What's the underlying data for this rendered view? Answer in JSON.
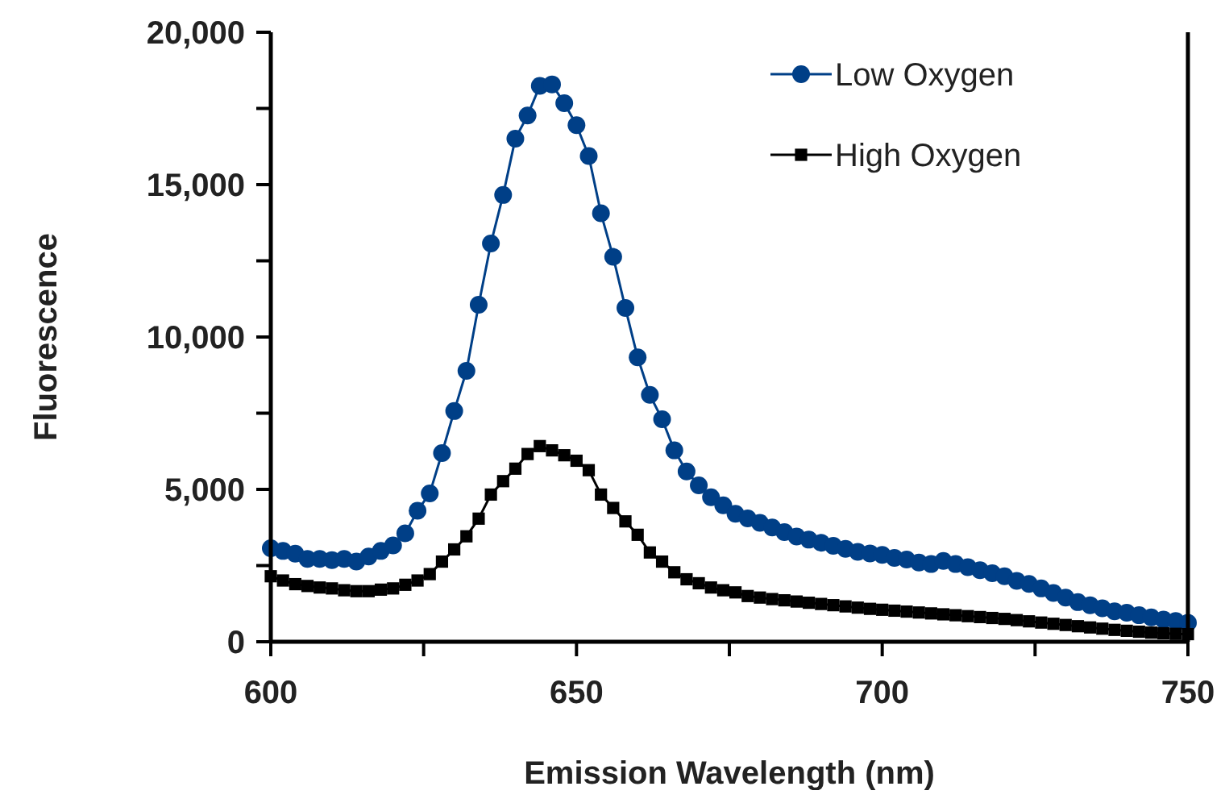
{
  "chart_data": {
    "type": "line",
    "xlabel": "Emission Wavelength (nm)",
    "ylabel": "Fluorescence",
    "x": [
      600,
      602,
      604,
      606,
      608,
      610,
      612,
      614,
      616,
      618,
      620,
      622,
      624,
      626,
      628,
      630,
      632,
      634,
      636,
      638,
      640,
      642,
      644,
      646,
      648,
      650,
      652,
      654,
      656,
      658,
      660,
      662,
      664,
      666,
      668,
      670,
      672,
      674,
      676,
      678,
      680,
      682,
      684,
      686,
      688,
      690,
      692,
      694,
      696,
      698,
      700,
      702,
      704,
      706,
      708,
      710,
      712,
      714,
      716,
      718,
      720,
      722,
      724,
      726,
      728,
      730,
      732,
      734,
      736,
      738,
      740,
      742,
      744,
      746,
      748,
      750
    ],
    "series": [
      {
        "name": "Low Oxygen",
        "color": "#003f87",
        "marker": "circle",
        "values": [
          3070,
          2980,
          2890,
          2720,
          2720,
          2680,
          2720,
          2630,
          2800,
          2980,
          3160,
          3560,
          4300,
          4870,
          6190,
          7570,
          8890,
          11060,
          13070,
          14660,
          16510,
          17270,
          18240,
          18290,
          17670,
          16950,
          15940,
          14060,
          12630,
          10950,
          9330,
          8100,
          7300,
          6280,
          5590,
          5130,
          4740,
          4480,
          4200,
          4050,
          3900,
          3750,
          3600,
          3450,
          3350,
          3250,
          3150,
          3050,
          2950,
          2900,
          2850,
          2750,
          2700,
          2600,
          2550,
          2650,
          2550,
          2450,
          2350,
          2250,
          2150,
          2000,
          1900,
          1750,
          1600,
          1450,
          1300,
          1200,
          1100,
          1000,
          950,
          870,
          800,
          730,
          680,
          620
        ]
      },
      {
        "name": "High Oxygen",
        "color": "#000000",
        "marker": "square",
        "values": [
          2150,
          2010,
          1890,
          1830,
          1780,
          1750,
          1690,
          1660,
          1660,
          1710,
          1750,
          1870,
          2010,
          2220,
          2630,
          3030,
          3460,
          4040,
          4830,
          5270,
          5680,
          6160,
          6420,
          6280,
          6120,
          5940,
          5630,
          4830,
          4390,
          3950,
          3510,
          2930,
          2630,
          2280,
          2050,
          1920,
          1780,
          1690,
          1620,
          1500,
          1450,
          1400,
          1360,
          1320,
          1280,
          1240,
          1200,
          1160,
          1120,
          1080,
          1050,
          1020,
          990,
          960,
          930,
          900,
          870,
          840,
          810,
          780,
          750,
          710,
          670,
          630,
          590,
          550,
          510,
          470,
          430,
          390,
          360,
          330,
          300,
          280,
          260,
          250
        ]
      }
    ],
    "xlim": [
      600,
      750
    ],
    "xticks": [
      600,
      {
        "value": 625,
        "label": null
      },
      650,
      {
        "value": 675,
        "label": null
      },
      700,
      {
        "value": 725,
        "label": null
      },
      750
    ],
    "ylim": [
      0,
      20000
    ],
    "yticks": [
      {
        "value": 0,
        "label": "0"
      },
      {
        "value": 2500,
        "label": null
      },
      {
        "value": 5000,
        "label": "5,000"
      },
      {
        "value": 7500,
        "label": null
      },
      {
        "value": 10000,
        "label": "10,000"
      },
      {
        "value": 12500,
        "label": null
      },
      {
        "value": 15000,
        "label": "15,000"
      },
      {
        "value": 17500,
        "label": null
      },
      {
        "value": 20000,
        "label": "20,000"
      }
    ],
    "grid": false,
    "legend": "top right",
    "line_style": "solid"
  }
}
